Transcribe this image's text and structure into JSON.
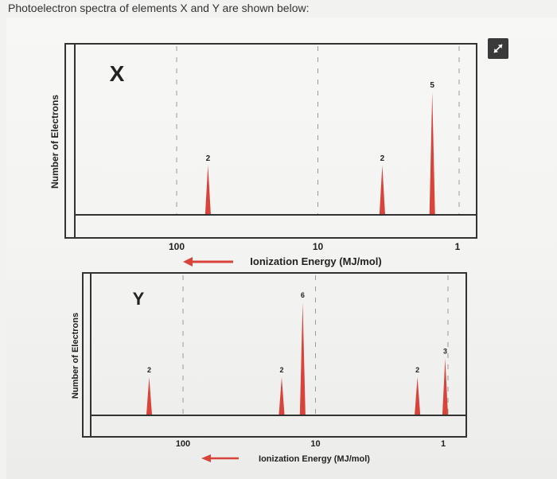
{
  "caption": "Photoelectron spectra of elements X and Y are shown below:",
  "colors": {
    "peak": "#d8433a",
    "frame": "#333333",
    "text": "#222222",
    "arrow": "#d8433a"
  },
  "expand_icon": "expand-arrows-icon",
  "chart_data": [
    {
      "type": "bar",
      "title": "X",
      "ylabel": "Number of Electrons",
      "xlabel": "Ionization Energy (MJ/mol)",
      "x_scale": "log-reversed",
      "x_ticks": [
        "100",
        "10",
        "1"
      ],
      "x_tick_values": [
        100,
        10,
        1
      ],
      "xlim": [
        300,
        0.7
      ],
      "ylim": [
        0,
        6.5
      ],
      "peaks": [
        {
          "ionization_energy": 60,
          "electrons": 2,
          "label": "2"
        },
        {
          "ionization_energy": 3.5,
          "electrons": 2,
          "label": "2"
        },
        {
          "ionization_energy": 1.55,
          "electrons": 5,
          "label": "5"
        }
      ]
    },
    {
      "type": "bar",
      "title": "Y",
      "ylabel": "Number of Electrons",
      "xlabel": "Ionization Energy (MJ/mol)",
      "x_scale": "log-reversed",
      "x_ticks": [
        "100",
        "10",
        "1"
      ],
      "x_tick_values": [
        100,
        10,
        1
      ],
      "xlim": [
        300,
        0.7
      ],
      "ylim": [
        0,
        7.2
      ],
      "peaks": [
        {
          "ionization_energy": 180,
          "electrons": 2,
          "label": "2"
        },
        {
          "ionization_energy": 18,
          "electrons": 2,
          "label": "2"
        },
        {
          "ionization_energy": 12.5,
          "electrons": 6,
          "label": "6"
        },
        {
          "ionization_energy": 1.7,
          "electrons": 2,
          "label": "2"
        },
        {
          "ionization_energy": 1.05,
          "electrons": 3,
          "label": "3"
        }
      ]
    }
  ]
}
